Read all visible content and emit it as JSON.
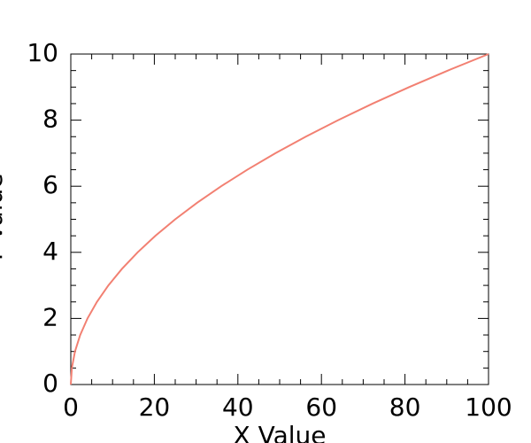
{
  "chart_data": {
    "type": "line",
    "x_label": "X Value",
    "y_label": "Y Value",
    "x": [
      0,
      0.25,
      1,
      2.25,
      4,
      6.25,
      9,
      12.25,
      16,
      20.25,
      25,
      30.25,
      36,
      42.25,
      49,
      56.25,
      64,
      72.25,
      81,
      90.25,
      100
    ],
    "series": [
      {
        "color": "#f28072",
        "values": [
          0,
          0.5,
          1,
          1.5,
          2,
          2.5,
          3,
          3.5,
          4,
          4.5,
          5,
          5.5,
          6,
          6.5,
          7,
          7.5,
          8,
          8.5,
          9,
          9.5,
          10
        ]
      }
    ],
    "xlim": [
      0,
      100
    ],
    "ylim": [
      0,
      10
    ],
    "xticks": [
      0,
      20,
      40,
      60,
      80,
      100
    ],
    "yticks": [
      0,
      2,
      4,
      6,
      8,
      10
    ],
    "xminorticks": [
      5,
      10,
      15,
      25,
      30,
      35,
      45,
      50,
      55,
      65,
      70,
      75,
      85,
      90,
      95
    ],
    "yminorticks": [
      0.5,
      1,
      1.5,
      2.5,
      3,
      3.5,
      4.5,
      5,
      5.5,
      6.5,
      7,
      7.5,
      8.5,
      9,
      9.5
    ],
    "grid": false
  }
}
